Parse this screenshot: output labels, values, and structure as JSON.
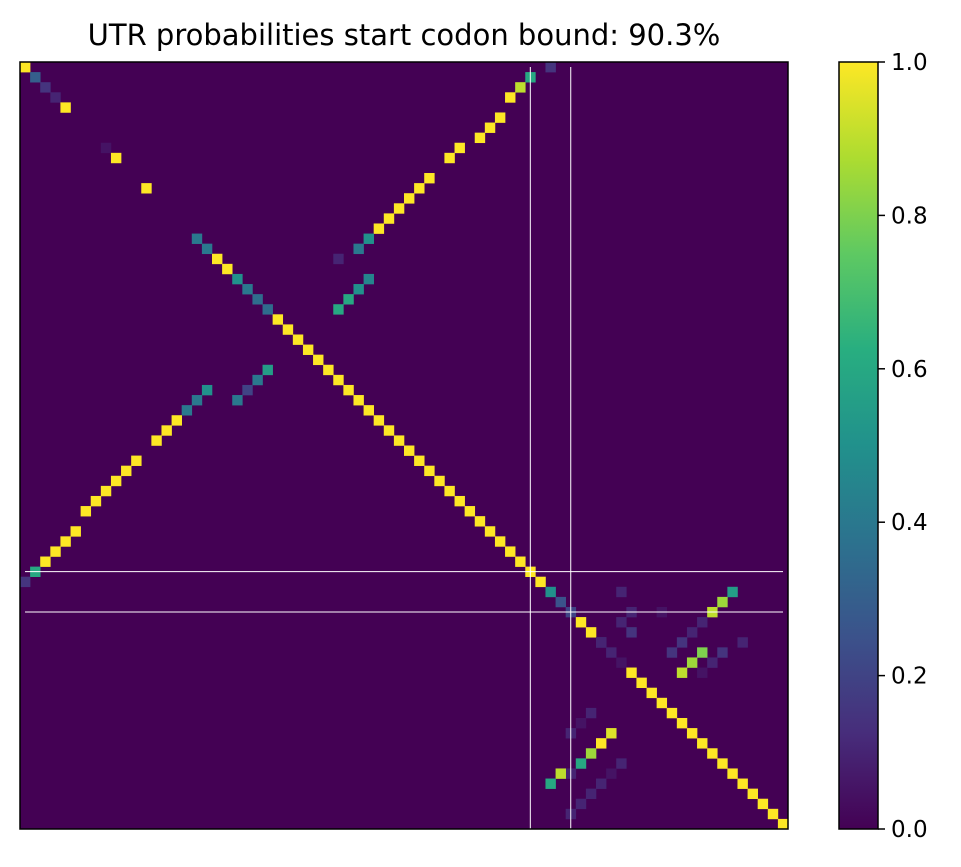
{
  "chart_data": {
    "type": "heatmap",
    "title": "UTR probabilities start codon bound: 90.3%",
    "matrix_size": 76,
    "background_value": 0.0,
    "colorbar": {
      "colormap": "viridis",
      "range": [
        0.0,
        1.0
      ],
      "ticks": [
        "0.0",
        "0.2",
        "0.4",
        "0.6",
        "0.8",
        "1.0"
      ]
    },
    "xticks": "none",
    "yticks": "none",
    "grid": false,
    "guide_lines": {
      "index_a": 50.5,
      "index_b": 54.5,
      "color": "#ffffff"
    },
    "cells": [
      [
        0,
        0,
        1.0
      ],
      [
        1,
        1,
        0.3
      ],
      [
        2,
        2,
        0.15
      ],
      [
        3,
        3,
        0.1
      ],
      [
        4,
        4,
        1.0
      ],
      [
        8,
        8,
        0.05
      ],
      [
        9,
        9,
        1.0
      ],
      [
        12,
        12,
        1.0
      ],
      [
        17,
        17,
        0.4
      ],
      [
        18,
        18,
        0.4
      ],
      [
        19,
        19,
        1.0
      ],
      [
        20,
        20,
        1.0
      ],
      [
        21,
        21,
        0.5
      ],
      [
        22,
        22,
        0.4
      ],
      [
        23,
        23,
        0.35
      ],
      [
        24,
        24,
        0.35
      ],
      [
        25,
        25,
        1.0
      ],
      [
        26,
        26,
        1.0
      ],
      [
        27,
        27,
        1.0
      ],
      [
        28,
        28,
        1.0
      ],
      [
        29,
        29,
        1.0
      ],
      [
        30,
        30,
        1.0
      ],
      [
        31,
        31,
        1.0
      ],
      [
        32,
        32,
        1.0
      ],
      [
        33,
        33,
        1.0
      ],
      [
        34,
        34,
        1.0
      ],
      [
        35,
        35,
        1.0
      ],
      [
        36,
        36,
        1.0
      ],
      [
        37,
        37,
        1.0
      ],
      [
        38,
        38,
        1.0
      ],
      [
        39,
        39,
        1.0
      ],
      [
        40,
        40,
        1.0
      ],
      [
        41,
        41,
        1.0
      ],
      [
        42,
        42,
        1.0
      ],
      [
        43,
        43,
        1.0
      ],
      [
        44,
        44,
        1.0
      ],
      [
        45,
        45,
        1.0
      ],
      [
        46,
        46,
        1.0
      ],
      [
        47,
        47,
        1.0
      ],
      [
        48,
        48,
        1.0
      ],
      [
        49,
        49,
        1.0
      ],
      [
        50,
        50,
        1.0
      ],
      [
        51,
        51,
        1.0
      ],
      [
        52,
        52,
        0.5
      ],
      [
        53,
        53,
        0.25
      ],
      [
        54,
        54,
        0.2
      ],
      [
        55,
        55,
        1.0
      ],
      [
        56,
        56,
        1.0
      ],
      [
        57,
        57,
        0.2
      ],
      [
        58,
        58,
        0.1
      ],
      [
        59,
        59,
        0.05
      ],
      [
        60,
        60,
        1.0
      ],
      [
        61,
        61,
        1.0
      ],
      [
        62,
        62,
        1.0
      ],
      [
        63,
        63,
        1.0
      ],
      [
        64,
        64,
        1.0
      ],
      [
        65,
        65,
        1.0
      ],
      [
        66,
        66,
        1.0
      ],
      [
        67,
        67,
        1.0
      ],
      [
        68,
        68,
        1.0
      ],
      [
        69,
        69,
        1.0
      ],
      [
        70,
        70,
        1.0
      ],
      [
        71,
        71,
        1.0
      ],
      [
        72,
        72,
        1.0
      ],
      [
        73,
        73,
        1.0
      ],
      [
        74,
        74,
        1.0
      ],
      [
        75,
        75,
        1.0
      ],
      [
        1,
        50,
        0.6
      ],
      [
        2,
        49,
        0.9
      ],
      [
        3,
        48,
        1.0
      ],
      [
        5,
        47,
        1.0
      ],
      [
        6,
        46,
        1.0
      ],
      [
        7,
        45,
        1.0
      ],
      [
        8,
        43,
        1.0
      ],
      [
        9,
        42,
        1.0
      ],
      [
        11,
        40,
        1.0
      ],
      [
        12,
        39,
        1.0
      ],
      [
        13,
        38,
        1.0
      ],
      [
        14,
        37,
        1.0
      ],
      [
        15,
        36,
        1.0
      ],
      [
        16,
        35,
        1.0
      ],
      [
        17,
        34,
        0.5
      ],
      [
        18,
        33,
        0.4
      ],
      [
        19,
        31,
        0.1
      ],
      [
        21,
        34,
        0.45
      ],
      [
        22,
        33,
        0.5
      ],
      [
        23,
        32,
        0.6
      ],
      [
        24,
        31,
        0.6
      ],
      [
        0,
        52,
        0.15
      ],
      [
        30,
        24,
        0.55
      ],
      [
        31,
        23,
        0.4
      ],
      [
        32,
        22,
        0.2
      ],
      [
        32,
        18,
        0.5
      ],
      [
        33,
        17,
        0.4
      ],
      [
        33,
        21,
        0.4
      ],
      [
        34,
        16,
        0.4
      ],
      [
        35,
        15,
        1.0
      ],
      [
        36,
        14,
        1.0
      ],
      [
        37,
        13,
        1.0
      ],
      [
        39,
        11,
        1.0
      ],
      [
        40,
        10,
        1.0
      ],
      [
        41,
        9,
        1.0
      ],
      [
        42,
        8,
        1.0
      ],
      [
        43,
        7,
        1.0
      ],
      [
        44,
        6,
        1.0
      ],
      [
        46,
        5,
        1.0
      ],
      [
        47,
        4,
        1.0
      ],
      [
        48,
        3,
        1.0
      ],
      [
        49,
        2,
        1.0
      ],
      [
        50,
        1,
        0.6
      ],
      [
        51,
        0,
        0.15
      ],
      [
        52,
        59,
        0.1
      ],
      [
        54,
        60,
        0.1
      ],
      [
        55,
        59,
        0.1
      ],
      [
        56,
        60,
        0.15
      ],
      [
        57,
        57,
        0.1
      ],
      [
        54,
        63,
        0.05
      ],
      [
        52,
        70,
        0.55
      ],
      [
        53,
        69,
        0.85
      ],
      [
        54,
        68,
        0.9
      ],
      [
        55,
        67,
        0.1
      ],
      [
        56,
        66,
        0.1
      ],
      [
        57,
        65,
        0.15
      ],
      [
        58,
        64,
        0.15
      ],
      [
        57,
        71,
        0.1
      ],
      [
        58,
        69,
        0.15
      ],
      [
        59,
        68,
        0.1
      ],
      [
        60,
        67,
        0.05
      ],
      [
        58,
        67,
        0.8
      ],
      [
        59,
        66,
        0.85
      ],
      [
        60,
        65,
        0.9
      ],
      [
        64,
        56,
        0.1
      ],
      [
        65,
        55,
        0.05
      ],
      [
        66,
        54,
        0.1
      ],
      [
        66,
        58,
        0.95
      ],
      [
        67,
        57,
        1.0
      ],
      [
        68,
        56,
        0.85
      ],
      [
        69,
        55,
        0.6
      ],
      [
        70,
        54,
        0.1
      ],
      [
        70,
        53,
        0.9
      ],
      [
        71,
        52,
        0.6
      ],
      [
        69,
        59,
        0.1
      ],
      [
        70,
        58,
        0.05
      ],
      [
        71,
        57,
        0.1
      ],
      [
        72,
        56,
        0.1
      ],
      [
        73,
        55,
        0.1
      ],
      [
        74,
        54,
        0.1
      ]
    ]
  }
}
